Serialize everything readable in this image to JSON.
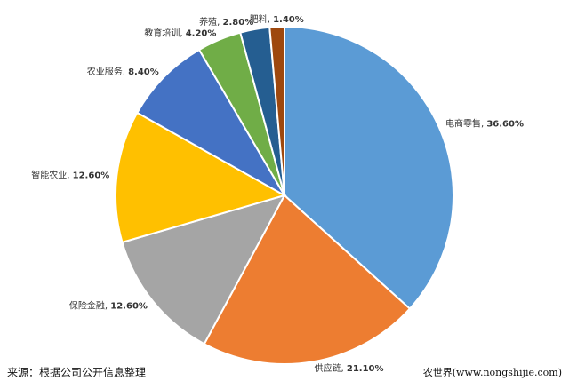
{
  "chart_data": {
    "type": "pie",
    "categories": [
      "电商零售",
      "供应链",
      "保险金融",
      "智能农业",
      "农业服务",
      "教育培训",
      "养殖",
      "肥料"
    ],
    "values": [
      36.6,
      21.1,
      12.6,
      12.6,
      8.4,
      4.2,
      2.8,
      1.4
    ],
    "value_labels": [
      "36.60%",
      "21.10%",
      "12.60%",
      "12.60%",
      "8.40%",
      "4.20%",
      "2.80%",
      "1.40%"
    ],
    "label_separator": ", ",
    "colors": [
      "#5b9bd5",
      "#ed7d31",
      "#a5a5a5",
      "#ffc000",
      "#4472c4",
      "#70ad47",
      "#255e91",
      "#9e480e"
    ],
    "source": "来源：根据公司公开信息整理",
    "watermark": "农世界(www.nongshijie.com)"
  }
}
